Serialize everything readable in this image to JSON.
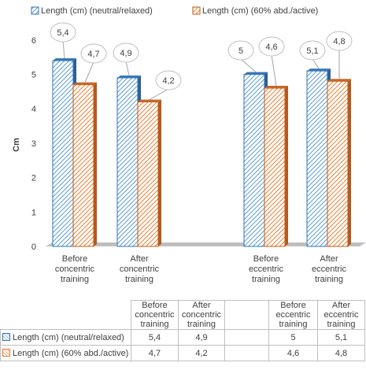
{
  "chart_data": {
    "type": "bar",
    "title": "",
    "xlabel": "",
    "ylabel": "Cm",
    "ylim": [
      0,
      6
    ],
    "yticks": [
      0,
      1,
      2,
      3,
      4,
      5,
      6
    ],
    "grid": false,
    "legend_position": "top",
    "data_labels": "callouts",
    "data_table": true,
    "categories": [
      "Before concentric training",
      "After concentric training",
      "",
      "Before eccentric training",
      "After eccentric training"
    ],
    "category_lines": [
      [
        "Before",
        "concentric",
        "training"
      ],
      [
        "After",
        "concentric",
        "training"
      ],
      [],
      [
        "Before",
        "eccentric",
        "training"
      ],
      [
        "After",
        "eccentric",
        "training"
      ]
    ],
    "series": [
      {
        "name": "Length (cm) (neutral/relaxed)",
        "values": [
          5.4,
          4.9,
          null,
          5,
          5.1
        ],
        "labels": [
          "5,4",
          "4,9",
          "",
          "5",
          "5,1"
        ],
        "color": "#5b9bd5",
        "pattern": "diagonal-hatch"
      },
      {
        "name": "Length (cm) (60% abd./active)",
        "values": [
          4.7,
          4.2,
          null,
          4.6,
          4.8
        ],
        "labels": [
          "4,7",
          "4,2",
          "",
          "4,6",
          "4,8"
        ],
        "color": "#ed7d31",
        "pattern": "diagonal-hatch"
      }
    ],
    "table_header": [
      [
        "Before",
        "concentric",
        "training"
      ],
      [
        "After",
        "concentric",
        "training"
      ],
      [],
      [
        "Before",
        "eccentric",
        "training"
      ],
      [
        "After",
        "eccentric",
        "training"
      ]
    ]
  }
}
